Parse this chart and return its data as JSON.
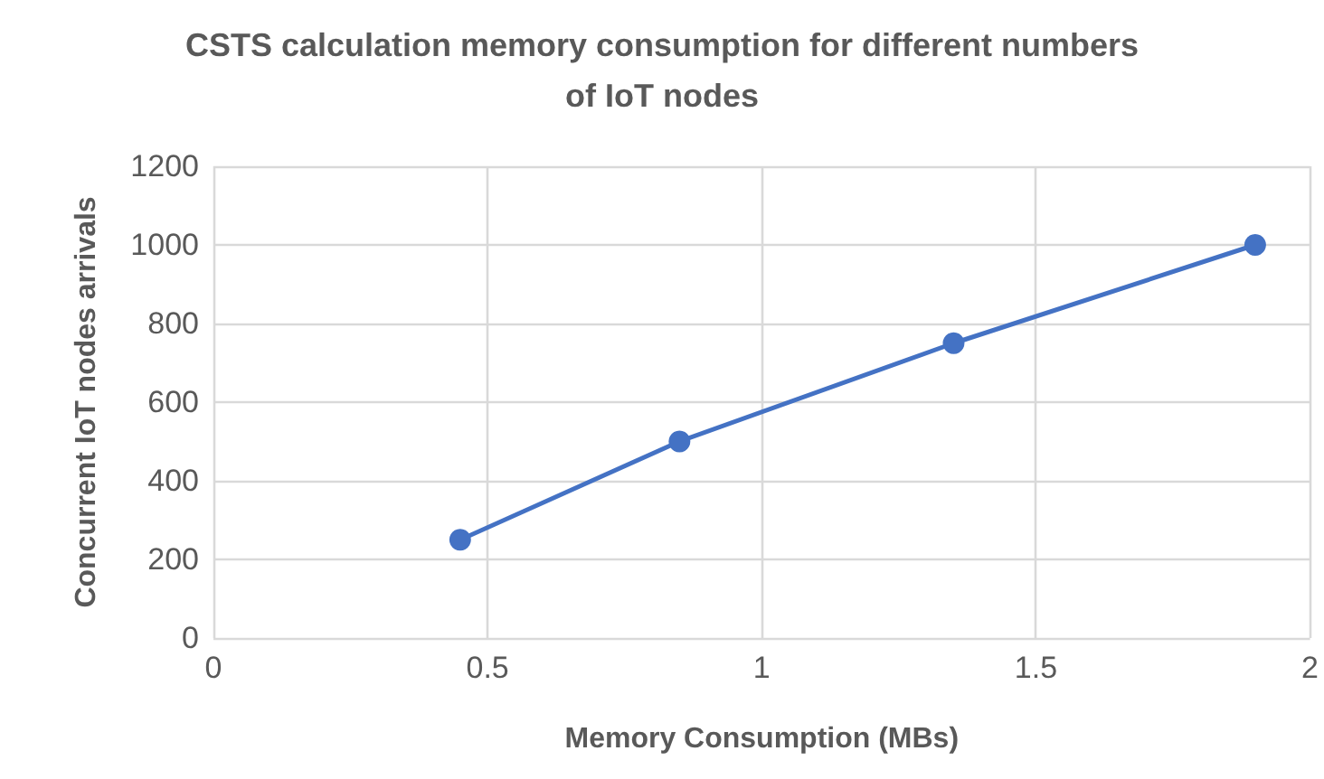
{
  "chart_data": {
    "type": "line",
    "title": "CSTS calculation memory consumption for different numbers\nof IoT nodes",
    "xlabel": "Memory Consumption (MBs)",
    "ylabel": "Concurrent IoT nodes arrivals",
    "x": [
      0.45,
      0.85,
      1.35,
      1.9
    ],
    "series": [
      {
        "color": "#4472c4",
        "values": [
          250,
          500,
          750,
          1000
        ]
      }
    ],
    "xlim": [
      0,
      2
    ],
    "xticks": [
      0,
      0.5,
      1,
      1.5,
      2
    ],
    "ylim": [
      0,
      1200
    ],
    "yticks": [
      0,
      200,
      400,
      600,
      800,
      1000,
      1200
    ],
    "grid": true,
    "marker": "circle",
    "line_style": "solid"
  }
}
